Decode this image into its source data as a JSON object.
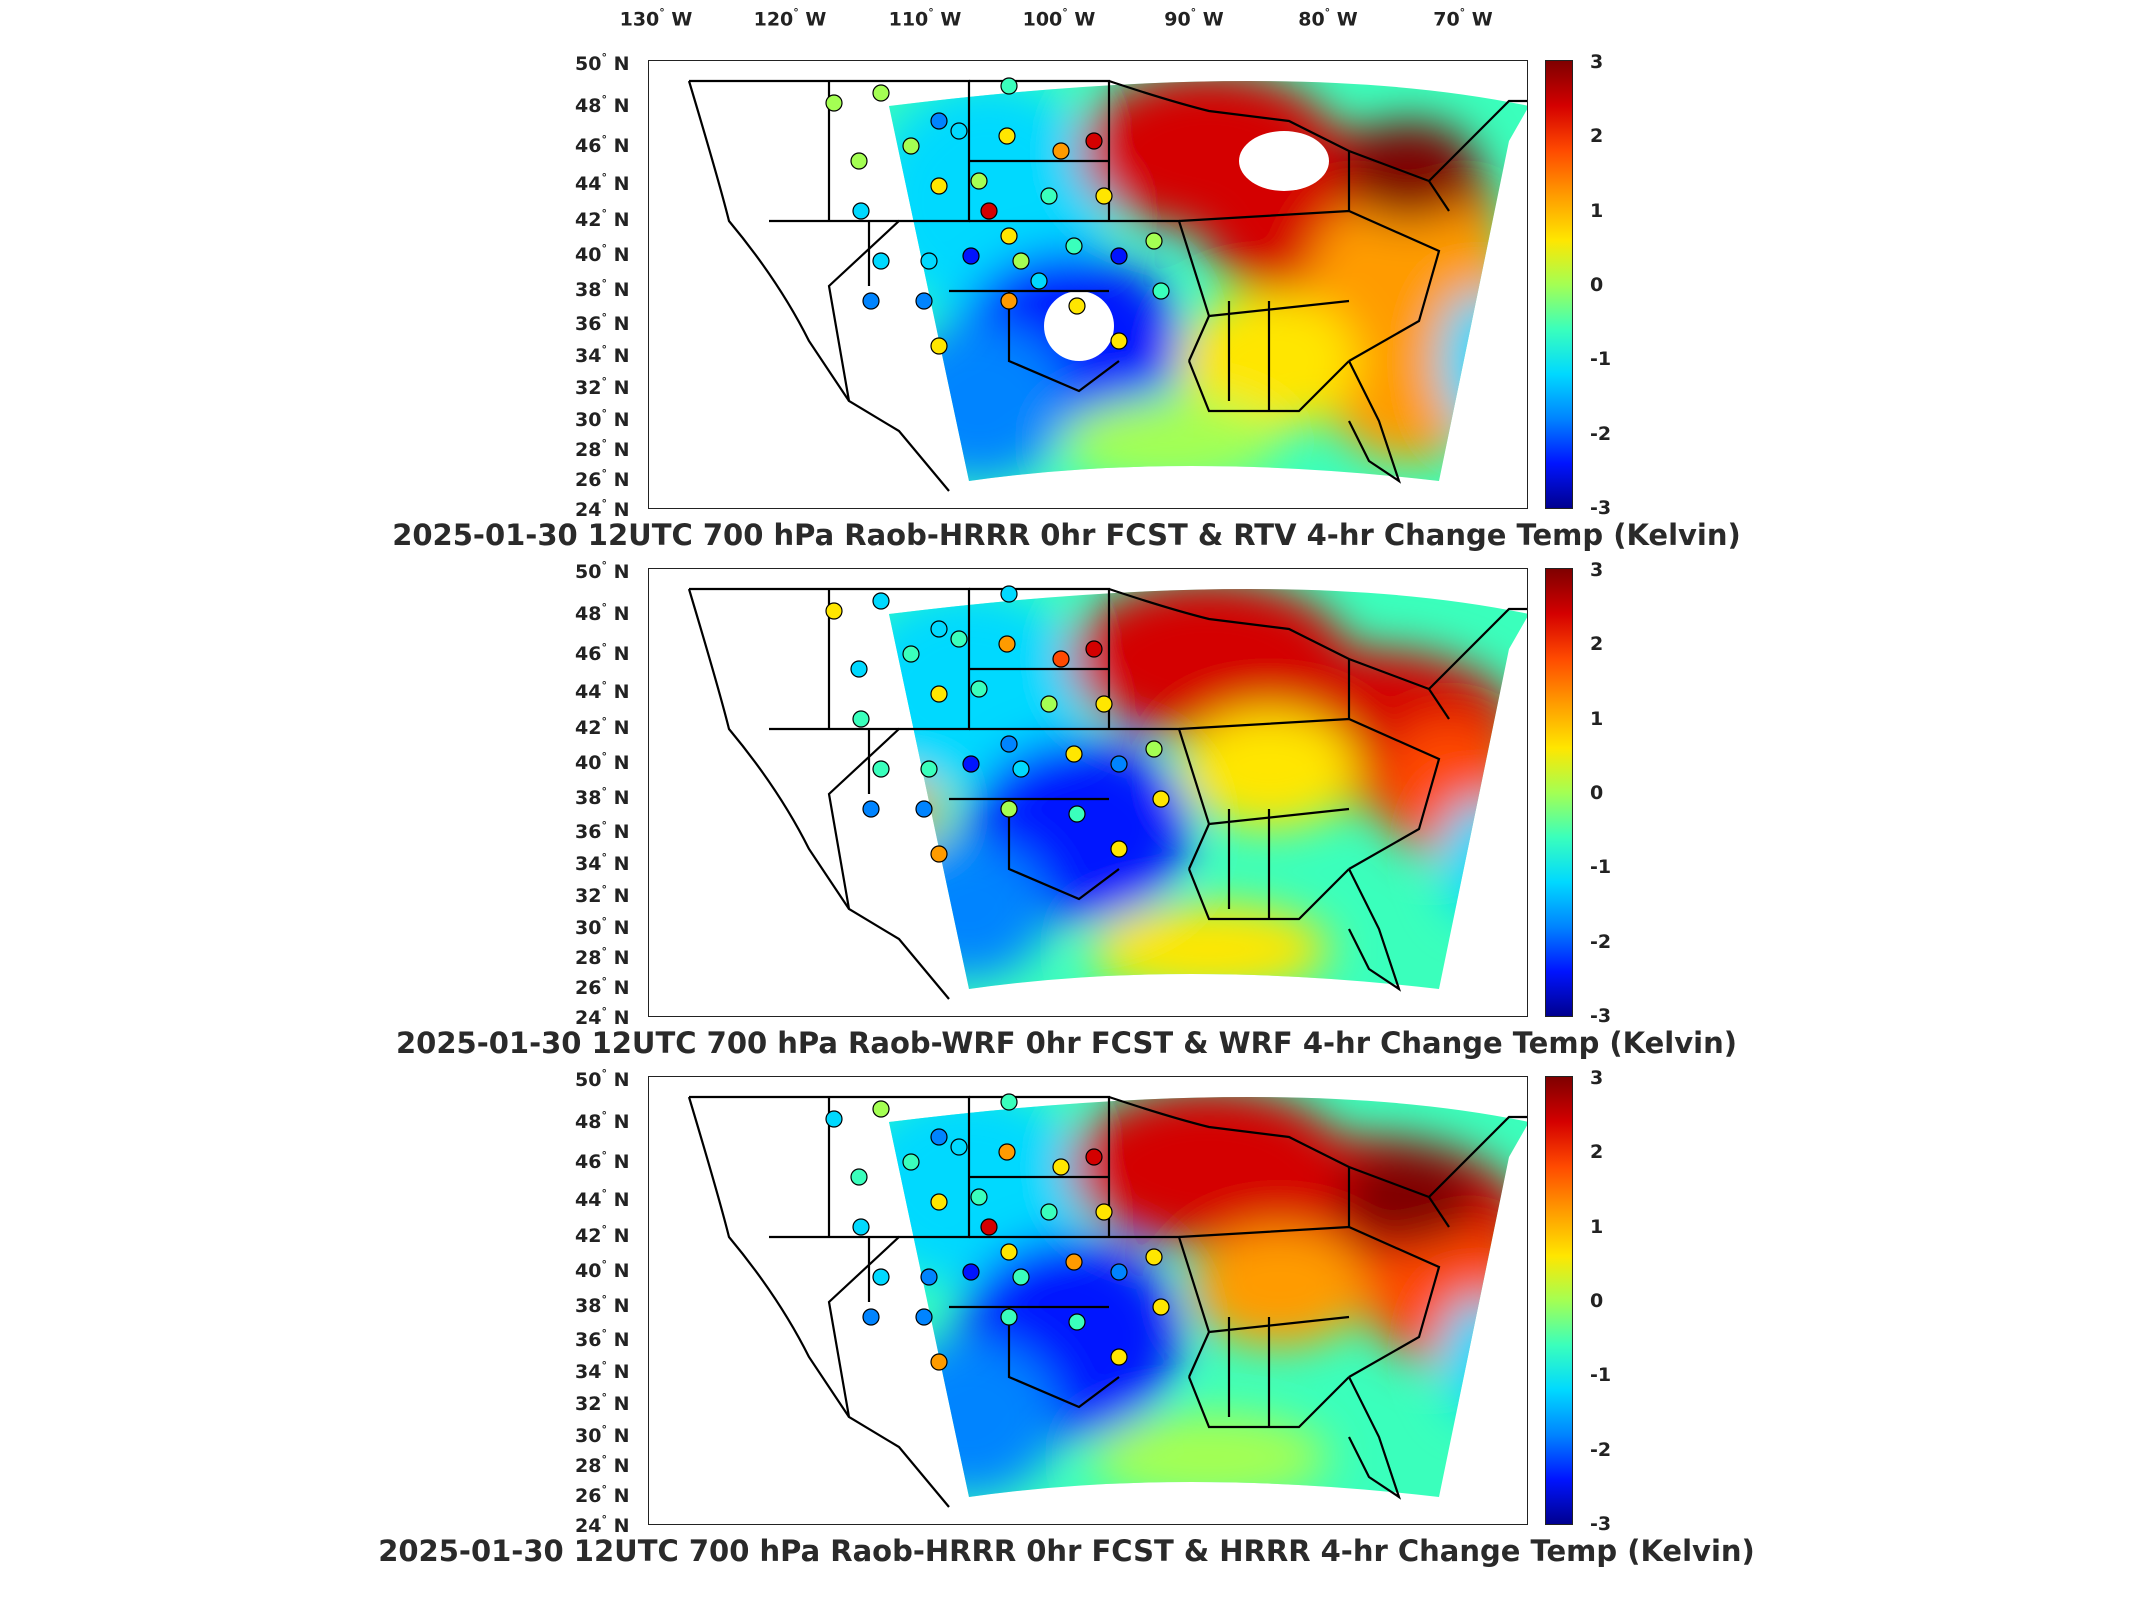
{
  "longitude_labels": [
    "130",
    "120",
    "110",
    "100",
    "90",
    "80",
    "70"
  ],
  "longitude_suffix": "W",
  "latitude_labels": [
    "50",
    "48",
    "46",
    "44",
    "42",
    "40",
    "38",
    "36",
    "34",
    "32",
    "30",
    "28",
    "26",
    "24"
  ],
  "latitude_suffix": "N",
  "colorbar": {
    "min": -3,
    "max": 3,
    "ticks": [
      "3",
      "2",
      "1",
      "0",
      "-1",
      "-2",
      "-3"
    ],
    "colors": [
      "#7f0000",
      "#d40000",
      "#ff4a00",
      "#ff9b00",
      "#ffe600",
      "#a4ff53",
      "#3affbc",
      "#00d9ff",
      "#0084ff",
      "#0014ff",
      "#00008f"
    ]
  },
  "panels": [
    {
      "title": "2025-01-30 12UTC 700 hPa Raob-HRRR 0hr FCST & RTV 4-hr Change Temp (Kelvin)"
    },
    {
      "title": "2025-01-30 12UTC 700 hPa Raob-WRF 0hr FCST & WRF 4-hr Change Temp (Kelvin)"
    },
    {
      "title": "2025-01-30 12UTC 700 hPa Raob-HRRR 0hr FCST & HRRR 4-hr Change Temp (Kelvin)"
    }
  ]
}
